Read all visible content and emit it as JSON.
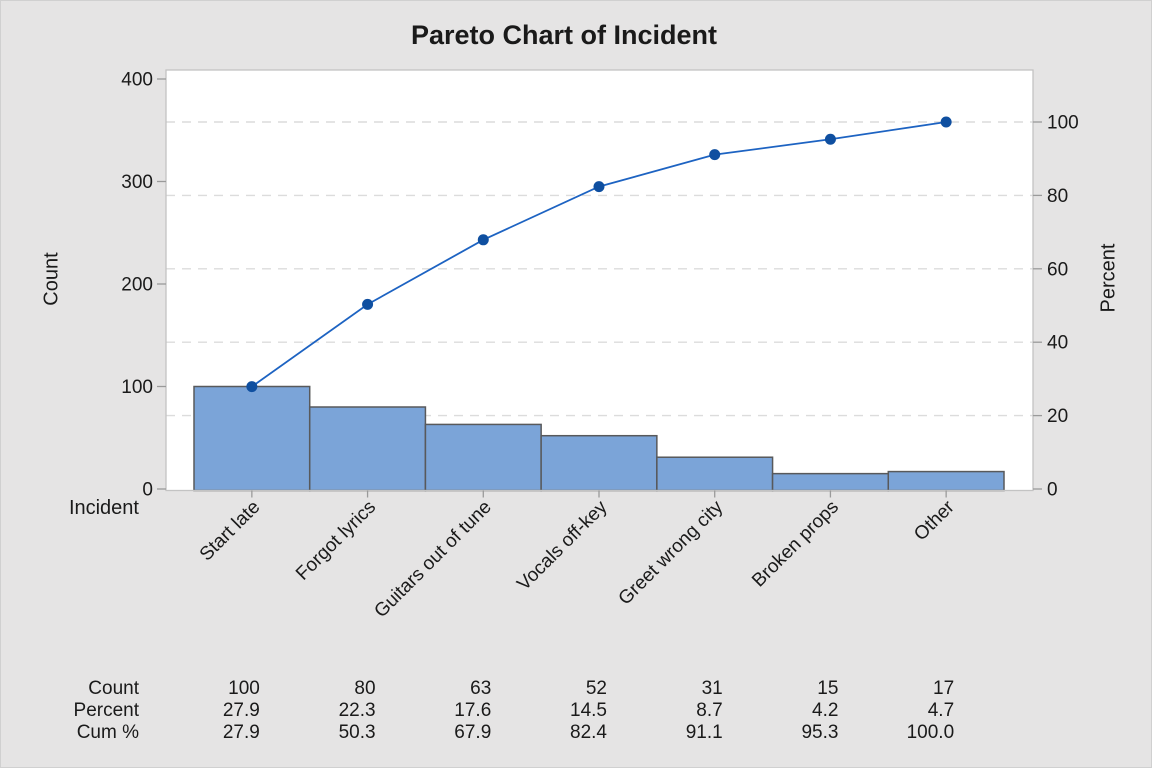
{
  "title": "Pareto Chart of Incident",
  "axes": {
    "left_title": "Count",
    "right_title": "Percent",
    "x_title": "Incident",
    "left_ticks": [
      0,
      100,
      200,
      300,
      400
    ],
    "right_ticks": [
      0,
      20,
      40,
      60,
      80,
      100
    ]
  },
  "chart_data": {
    "type": "bar",
    "subtype": "pareto",
    "title": "Pareto Chart of Incident",
    "categories": [
      "Start late",
      "Forgot lyrics",
      "Guitars out of tune",
      "Vocals off-key",
      "Greet wrong city",
      "Broken props",
      "Other"
    ],
    "values": [
      100,
      80,
      63,
      52,
      31,
      15,
      17
    ],
    "series": [
      {
        "name": "Count",
        "type": "bar",
        "axis": "left",
        "values": [
          100,
          80,
          63,
          52,
          31,
          15,
          17
        ]
      },
      {
        "name": "Cum %",
        "type": "line",
        "axis": "right",
        "values": [
          27.9,
          50.3,
          67.9,
          82.4,
          91.1,
          95.3,
          100.0
        ]
      }
    ],
    "xlabel": "Incident",
    "ylabel": "Count",
    "ylabel_right": "Percent",
    "ylim_left": [
      0,
      400
    ],
    "ylim_right": [
      0,
      100
    ],
    "grid": "dashed horizontal at right-axis ticks",
    "legend": "none"
  },
  "table": {
    "rows": [
      {
        "label": "Count",
        "values": [
          "100",
          "80",
          "63",
          "52",
          "31",
          "15",
          "17"
        ]
      },
      {
        "label": "Percent",
        "values": [
          "27.9",
          "22.3",
          "17.6",
          "14.5",
          "8.7",
          "4.2",
          "4.7"
        ]
      },
      {
        "label": "Cum %",
        "values": [
          "27.9",
          "50.3",
          "67.9",
          "82.4",
          "91.1",
          "95.3",
          "100.0"
        ]
      }
    ]
  },
  "colors": {
    "background": "#e5e4e4",
    "plot_background": "#ffffff",
    "plot_border": "#c3c3c3",
    "tick": "#9a9a9a",
    "grid": "#dcdcdc",
    "bar_fill": "#7ba4d8",
    "bar_border": "#58595b",
    "line": "#1d63c2",
    "marker": "#0f4fa0",
    "text": "#1a1a1a"
  }
}
